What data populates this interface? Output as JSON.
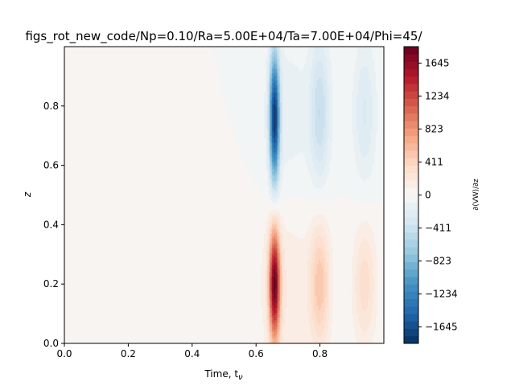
{
  "chart_data": {
    "type": "heatmap",
    "title": "figs_rot_new_code/Np=0.10/Ra=5.00E+04/Ta=7.00E+04/Phi=45/",
    "xlabel": "Time, t_ν",
    "ylabel": "z",
    "xlim": [
      0.0,
      1.0
    ],
    "ylim": [
      0.0,
      1.0
    ],
    "x_ticks": [
      0.0,
      0.2,
      0.4,
      0.6,
      0.8
    ],
    "x_tick_labels": [
      "0.0",
      "0.2",
      "0.4",
      "0.6",
      "0.8"
    ],
    "y_ticks": [
      0.0,
      0.2,
      0.4,
      0.6,
      0.8
    ],
    "y_tick_labels": [
      "0.0",
      "0.2",
      "0.4",
      "0.6",
      "0.8"
    ],
    "colormap": "RdBu_r",
    "colorbar": {
      "label": "∂⟨VW⟩/∂z",
      "vmin": -1850,
      "vmax": 1850,
      "ticks": [
        -1645,
        -1234,
        -823,
        -411,
        0,
        411,
        823,
        1234,
        1645
      ],
      "tick_labels": [
        "−1645",
        "−1234",
        "−823",
        "−411",
        "0",
        "411",
        "823",
        "1234",
        "1645"
      ]
    },
    "features": [
      {
        "t": 0.658,
        "z": 0.76,
        "value": -1700,
        "t_width": 0.011,
        "z_width": 0.15
      },
      {
        "t": 0.658,
        "z": 0.2,
        "value": 1700,
        "t_width": 0.012,
        "z_width": 0.13
      },
      {
        "t": 0.8,
        "z": 0.78,
        "value": -420,
        "t_width": 0.022,
        "z_width": 0.17
      },
      {
        "t": 0.8,
        "z": 0.2,
        "value": 480,
        "t_width": 0.022,
        "z_width": 0.15
      },
      {
        "t": 0.94,
        "z": 0.78,
        "value": -280,
        "t_width": 0.026,
        "z_width": 0.17
      },
      {
        "t": 0.94,
        "z": 0.2,
        "value": 320,
        "t_width": 0.026,
        "z_width": 0.15
      },
      {
        "t": 0.7,
        "z": 0.75,
        "value": -140,
        "t_width": 0.06,
        "z_width": 0.22
      },
      {
        "t": 0.7,
        "z": 0.2,
        "value": 150,
        "t_width": 0.06,
        "z_width": 0.22
      },
      {
        "t": 0.45,
        "z": 0.22,
        "value": 55,
        "t_width": 0.18,
        "z_width": 0.2
      },
      {
        "t": 0.02,
        "z": 0.2,
        "value": 60,
        "t_width": 0.012,
        "z_width": 0.5
      }
    ]
  }
}
